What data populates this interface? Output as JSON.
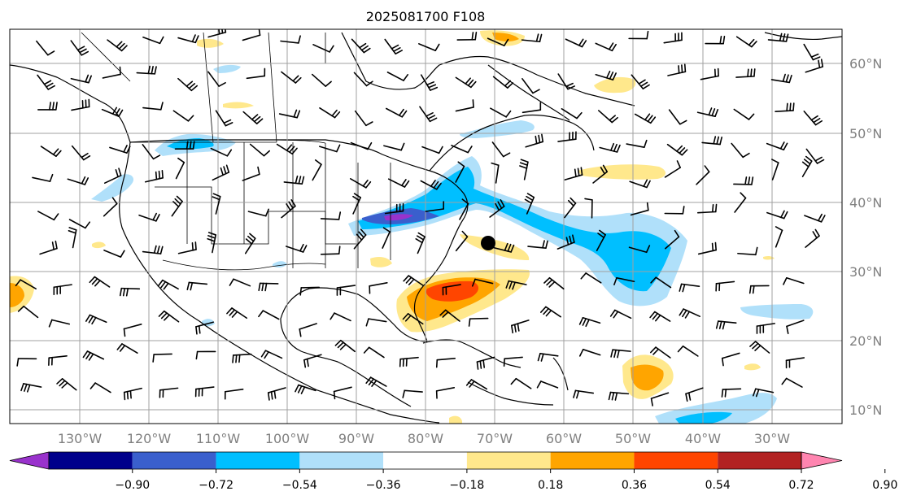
{
  "title": "2025081700 F108",
  "lon_labels": [
    "130°W",
    "120°W",
    "110°W",
    "100°W",
    "90°W",
    "80°W",
    "70°W",
    "60°W",
    "50°W",
    "40°W",
    "30°W"
  ],
  "lat_labels": [
    "60°N",
    "50°N",
    "40°N",
    "30°N",
    "20°N",
    "10°N"
  ],
  "colorbar": {
    "ticks": [
      "−0.90",
      "−0.72",
      "−0.54",
      "−0.36",
      "−0.18",
      "0.18",
      "0.36",
      "0.54",
      "0.72",
      "0.90"
    ],
    "colors": [
      "#9932cc",
      "#00008b",
      "#3a5fcd",
      "#00bfff",
      "#b0e0fa",
      "#ffffff",
      "#ffe88c",
      "#ffa500",
      "#ff4500",
      "#b22222",
      "#ff85b0"
    ]
  },
  "marker": {
    "label": "point",
    "lon": -71,
    "lat": 34
  }
}
